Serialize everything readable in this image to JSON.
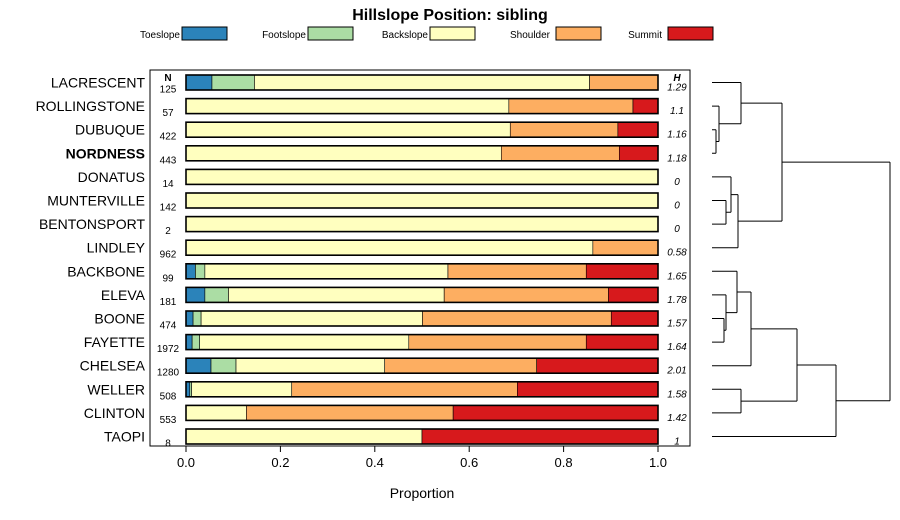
{
  "chart_data": {
    "type": "bar",
    "orientation": "horizontal",
    "stacked": true,
    "title": "Hillslope Position: sibling",
    "xlabel": "Proportion",
    "ylabel": "",
    "xlim": [
      0,
      1
    ],
    "xticks": [
      "0.0",
      "0.2",
      "0.4",
      "0.6",
      "0.8",
      "1.0"
    ],
    "n_header": "N",
    "h_header": "H",
    "highlight": "NORDNESS",
    "legend": [
      {
        "name": "Toeslope",
        "color": "#2b83ba"
      },
      {
        "name": "Footslope",
        "color": "#abdda4"
      },
      {
        "name": "Backslope",
        "color": "#ffffbf"
      },
      {
        "name": "Shoulder",
        "color": "#fdae61"
      },
      {
        "name": "Summit",
        "color": "#d7191c"
      }
    ],
    "rows": [
      {
        "name": "LACRESCENT",
        "n": "125",
        "h": "1.29",
        "values": [
          0.055,
          0.09,
          0.71,
          0.145,
          0.0
        ]
      },
      {
        "name": "ROLLINGSTONE",
        "n": "57",
        "h": "1.1",
        "values": [
          0.0,
          0.0,
          0.684,
          0.263,
          0.053
        ]
      },
      {
        "name": "DUBUQUE",
        "n": "422",
        "h": "1.16",
        "values": [
          0.0,
          0.0,
          0.687,
          0.228,
          0.085
        ]
      },
      {
        "name": "NORDNESS",
        "n": "443",
        "h": "1.18",
        "values": [
          0.0,
          0.0,
          0.668,
          0.25,
          0.082
        ]
      },
      {
        "name": "DONATUS",
        "n": "14",
        "h": "0",
        "values": [
          0.0,
          0.0,
          1.0,
          0.0,
          0.0
        ]
      },
      {
        "name": "MUNTERVILLE",
        "n": "142",
        "h": "0",
        "values": [
          0.0,
          0.0,
          1.0,
          0.0,
          0.0
        ]
      },
      {
        "name": "BENTONSPORT",
        "n": "2",
        "h": "0",
        "values": [
          0.0,
          0.0,
          1.0,
          0.0,
          0.0
        ]
      },
      {
        "name": "LINDLEY",
        "n": "962",
        "h": "0.58",
        "values": [
          0.0,
          0.0,
          0.862,
          0.138,
          0.0
        ]
      },
      {
        "name": "BACKBONE",
        "n": "99",
        "h": "1.65",
        "values": [
          0.02,
          0.02,
          0.515,
          0.293,
          0.152
        ]
      },
      {
        "name": "ELEVA",
        "n": "181",
        "h": "1.78",
        "values": [
          0.04,
          0.05,
          0.457,
          0.348,
          0.105
        ]
      },
      {
        "name": "BOONE",
        "n": "474",
        "h": "1.57",
        "values": [
          0.015,
          0.017,
          0.469,
          0.4,
          0.099
        ]
      },
      {
        "name": "FAYETTE",
        "n": "1972",
        "h": "1.64",
        "values": [
          0.013,
          0.016,
          0.443,
          0.376,
          0.152
        ]
      },
      {
        "name": "CHELSEA",
        "n": "1280",
        "h": "2.01",
        "values": [
          0.053,
          0.053,
          0.315,
          0.322,
          0.257
        ]
      },
      {
        "name": "WELLER",
        "n": "508",
        "h": "1.58",
        "values": [
          0.008,
          0.004,
          0.212,
          0.478,
          0.298
        ]
      },
      {
        "name": "CLINTON",
        "n": "553",
        "h": "1.42",
        "values": [
          0.0,
          0.0,
          0.128,
          0.438,
          0.434
        ]
      },
      {
        "name": "TAOPI",
        "n": "8",
        "h": "1",
        "values": [
          0.0,
          0.0,
          0.5,
          0.0,
          0.5
        ]
      }
    ],
    "dendrogram": [
      {
        "left": "LACRESCENT",
        "right": [
          "ROLLINGSTONE",
          "DUBUQUE",
          "NORDNESS"
        ],
        "groups": [
          [
            "LACRESCENT"
          ],
          [
            "ROLLINGSTONE",
            "DUBUQUE",
            "NORDNESS"
          ]
        ]
      }
    ]
  }
}
